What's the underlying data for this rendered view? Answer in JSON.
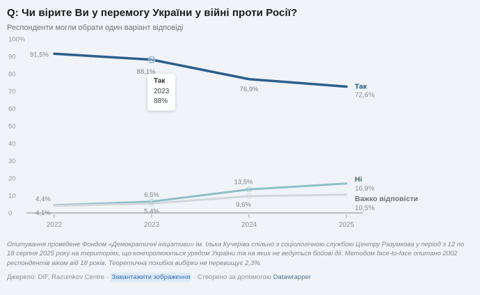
{
  "header": {
    "title": "Q: Чи вірите Ви у перемогу України у війні проти Росії?",
    "subtitle": "Респонденти могли обрати один варіант відповіді"
  },
  "chart_data": {
    "type": "line",
    "x": [
      "2022",
      "2023",
      "2024",
      "2025"
    ],
    "series": [
      {
        "name": "Так",
        "values": [
          91.5,
          88.1,
          76.9,
          72.6
        ],
        "color": "#2d5f8d",
        "name_color": "#24557f"
      },
      {
        "name": "Ні",
        "values": [
          4.4,
          6.5,
          13.5,
          16.9
        ],
        "color": "#8fc0c6",
        "name_color": "#4a6068"
      },
      {
        "name": "Важко відповісти",
        "values": [
          4.1,
          5.4,
          9.6,
          10.5
        ],
        "color": "#d3d7db",
        "name_color": "#6e757b"
      }
    ],
    "ylim": [
      0,
      100
    ],
    "yticks": [
      0,
      10,
      20,
      30,
      40,
      50,
      60,
      70,
      80,
      90,
      100
    ],
    "ytick_labels": [
      "0",
      "10",
      "20",
      "30",
      "40",
      "50",
      "60",
      "70",
      "80",
      "90",
      "100%"
    ],
    "grid": false,
    "legend_position": "end-of-line-labels",
    "tooltip": {
      "name": "Так",
      "x": "2023",
      "value": "88%"
    }
  },
  "footer": {
    "note": "Опитування проведене Фондом «Демократичні ініціативи» ім. Ілька Кучеріва спільно з соціологічною службою Центру Разумкова у період з 12 по 18 серпня 2025 року на територіях, що контролюються урядом України та на яких не ведуться бойові дії. Методом face-to-face опитано 2002 респондентів віком від 18 років. Теоретична похибка вибірки не перевищує 2,3%."
  },
  "source": {
    "label": "Джерело: DIF, Razumkov Centre",
    "sep": " · ",
    "download_label": "Завантажити зображення",
    "created_with": "Створено за допомогою ",
    "datawrapper_label": "Datawrapper"
  }
}
